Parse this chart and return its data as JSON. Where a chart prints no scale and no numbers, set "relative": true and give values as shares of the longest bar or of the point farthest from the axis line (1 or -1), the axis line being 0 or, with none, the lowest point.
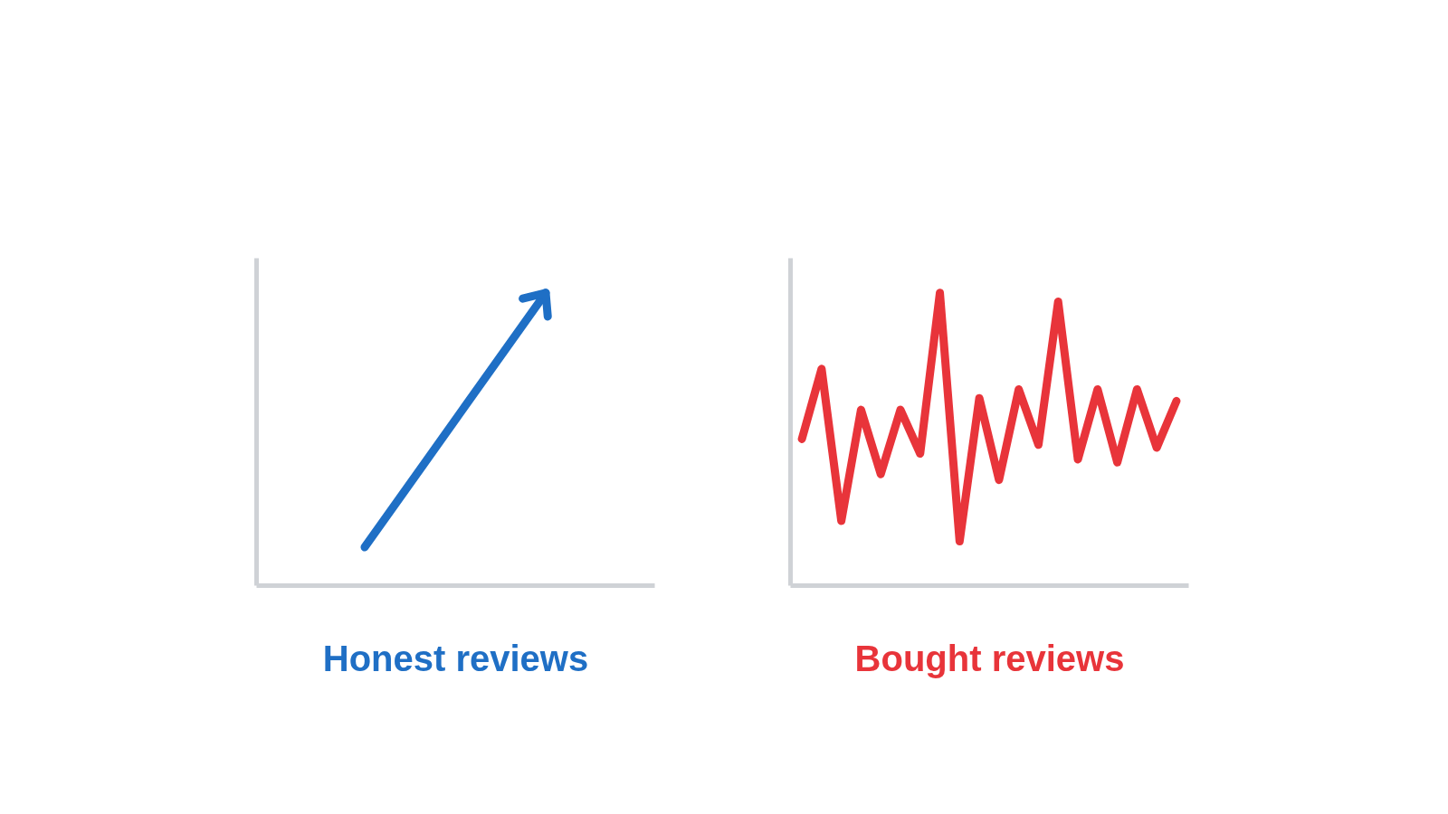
{
  "chart_data": [
    {
      "type": "line",
      "relative": true,
      "xlabel": "Honest reviews",
      "categories": [
        null,
        null
      ],
      "series": [
        {
          "color": "#1f6fc5",
          "values": [
            0.13,
            1
          ]
        }
      ]
    },
    {
      "type": "line",
      "relative": true,
      "xlabel": "Bought reviews",
      "categories": [
        null,
        null,
        null,
        null,
        null,
        null,
        null,
        null,
        null,
        null,
        null,
        null,
        null,
        null,
        null,
        null,
        null,
        null,
        null,
        null
      ],
      "series": [
        {
          "color": "#e8343a",
          "values": [
            0.5,
            0.74,
            0.22,
            0.6,
            0.38,
            0.6,
            0.45,
            1,
            0.15,
            0.64,
            0.36,
            0.67,
            0.48,
            0.97,
            0.43,
            0.67,
            0.42,
            0.67,
            0.47,
            0.63
          ]
        }
      ]
    }
  ]
}
